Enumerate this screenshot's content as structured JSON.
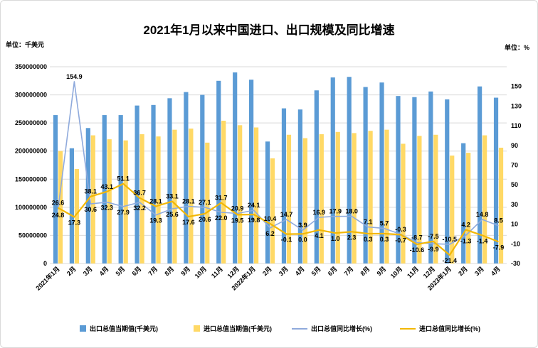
{
  "chart_data": {
    "type": "bar+line",
    "title": "2021年1月以来中国进口、出口规模及同比增速",
    "ylabel_left": "单位：千美元",
    "ylabel_right": "单位：%",
    "categories": [
      "2021年1月",
      "2月",
      "3月",
      "4月",
      "5月",
      "6月",
      "7月",
      "8月",
      "9月",
      "10月",
      "11月",
      "12月",
      "2022年1月",
      "2月",
      "3月",
      "4月",
      "5月",
      "6月",
      "7月",
      "8月",
      "9月",
      "10月",
      "11月",
      "12月",
      "2023年1月",
      "2月",
      "3月",
      "4月"
    ],
    "left_axis": {
      "min": 0,
      "max": 350000000,
      "step": 50000000,
      "ticks": [
        "0",
        "50000000",
        "100000000",
        "150000000",
        "200000000",
        "250000000",
        "300000000",
        "350000000"
      ]
    },
    "right_axis": {
      "min": -30,
      "max": 170,
      "step": 20,
      "ticks": [
        "-30",
        "-10",
        "10",
        "30",
        "50",
        "70",
        "90",
        "110",
        "130",
        "150"
      ]
    },
    "series": [
      {
        "name": "出口总值当期值(千美元)",
        "type": "bar",
        "axis": "left",
        "color": "#5b9bd5",
        "values": [
          264000000,
          205000000,
          241000000,
          264000000,
          264000000,
          281000000,
          282000000,
          294000000,
          305000000,
          300000000,
          325000000,
          340000000,
          327000000,
          217000000,
          276000000,
          274000000,
          308000000,
          331000000,
          332000000,
          314000000,
          322000000,
          298000000,
          296000000,
          306000000,
          292000000,
          214000000,
          315000000,
          295000000
        ]
      },
      {
        "name": "进口总值当期值(千美元)",
        "type": "bar",
        "axis": "left",
        "color": "#ffd966",
        "values": [
          200000000,
          168000000,
          228000000,
          221000000,
          219000000,
          230000000,
          226000000,
          238000000,
          240000000,
          215000000,
          254000000,
          246000000,
          242000000,
          187000000,
          229000000,
          223000000,
          230000000,
          234000000,
          232000000,
          236000000,
          238000000,
          213000000,
          227000000,
          229000000,
          192000000,
          197000000,
          228000000,
          206000000
        ]
      },
      {
        "name": "出口总值同比增长(%)",
        "type": "line",
        "axis": "right",
        "color": "#8faadc",
        "values": [
          24.8,
          154.9,
          30.6,
          32.3,
          27.9,
          32.2,
          19.3,
          25.6,
          28.1,
          27.1,
          22.0,
          20.9,
          24.1,
          6.2,
          14.7,
          3.9,
          16.9,
          17.9,
          18.0,
          7.1,
          5.7,
          -0.3,
          -8.7,
          -9.9,
          -10.5,
          -1.3,
          14.8,
          8.5
        ],
        "labels": [
          "24.8",
          "154.9",
          "30.6",
          "32.3",
          "27.9",
          "32.2",
          "19.3",
          "25.6",
          "28.1",
          "27.1",
          "22.0",
          "20.9",
          "24.1",
          "6.2",
          "14.7",
          "3.9",
          "16.9",
          "17.9",
          "18.0",
          "7.1",
          "5.7",
          "-0.3",
          "-8.7",
          "-9.9",
          "-10.5",
          "-1.3",
          "14.8",
          "8.5"
        ]
      },
      {
        "name": "进口总值同比增长(%)",
        "type": "line",
        "axis": "right",
        "color": "#f2b705",
        "values": [
          26.6,
          17.3,
          38.1,
          43.1,
          51.1,
          36.7,
          28.1,
          33.1,
          17.6,
          20.6,
          31.7,
          19.5,
          19.8,
          10.4,
          -0.1,
          0.0,
          4.1,
          1.0,
          2.3,
          0.3,
          0.3,
          -0.7,
          -10.6,
          -7.5,
          -21.4,
          4.2,
          -1.4,
          -7.9
        ],
        "labels": [
          "26.6",
          "17.3",
          "38.1",
          "43.1",
          "51.1",
          "36.7",
          "28.1",
          "33.1",
          "17.6",
          "20.6",
          "31.7",
          "19.5",
          "19.8",
          "10.4",
          "-0.1",
          "0.0",
          "4.1",
          "1.0",
          "2.3",
          "0.3",
          "0.3",
          "-0.7",
          "-10.6",
          "-7.5",
          "-21.4",
          "4.2",
          "-1.4",
          "-7.9"
        ]
      }
    ],
    "grid": true,
    "legend_position": "bottom"
  }
}
